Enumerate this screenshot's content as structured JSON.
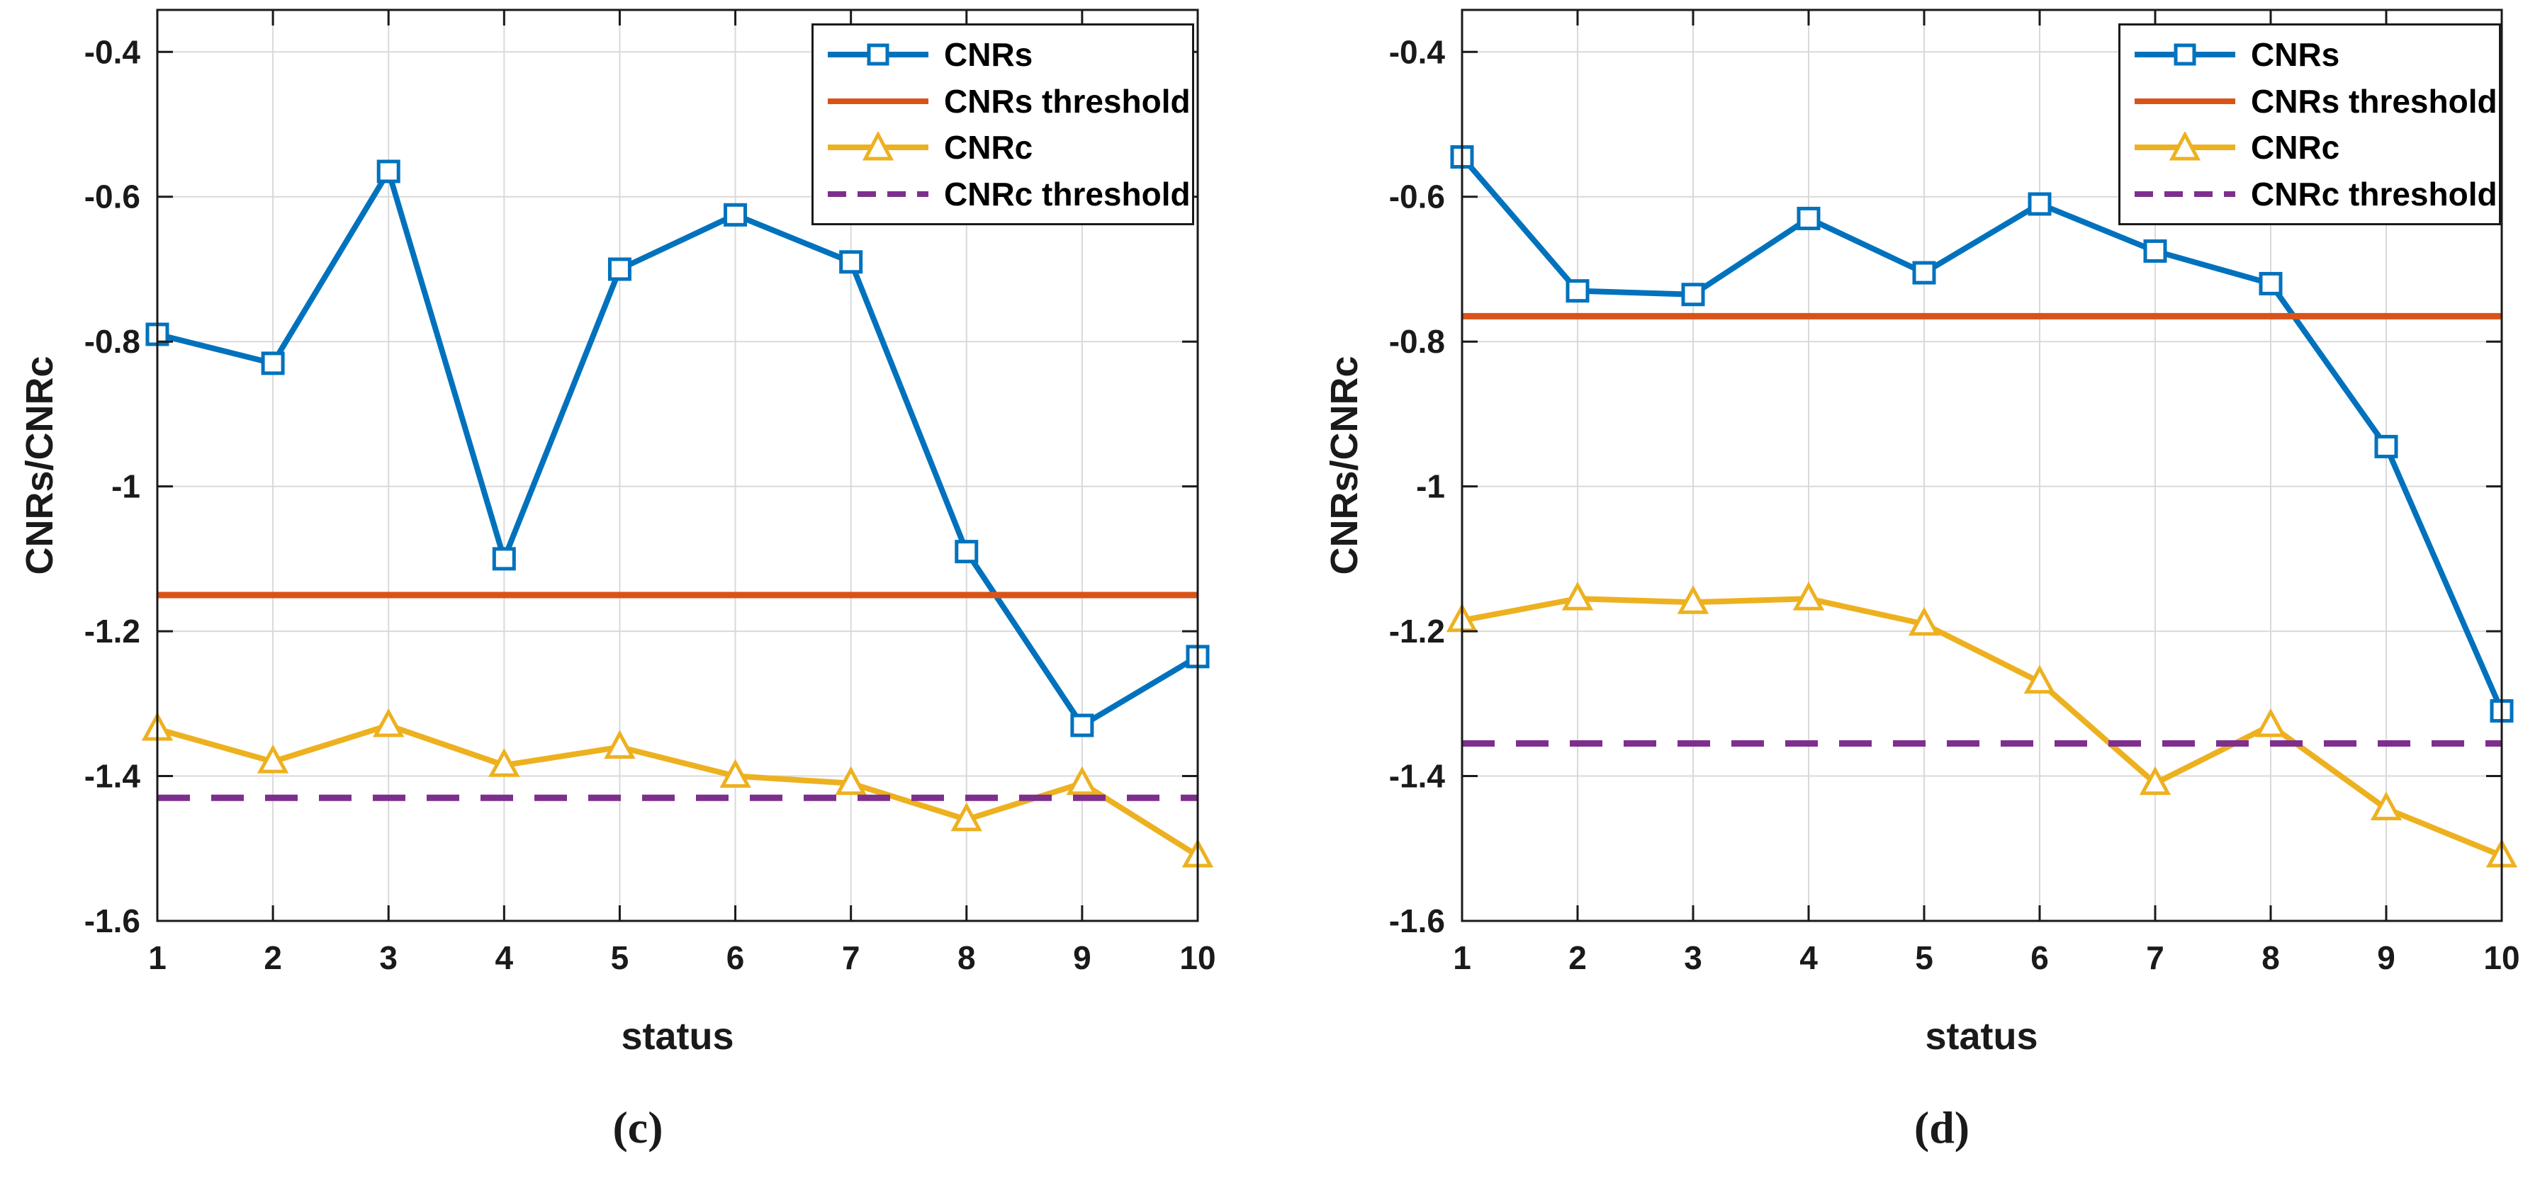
{
  "figure": {
    "background": "#ffffff",
    "caption_left": "(c)",
    "caption_right": "(d)"
  },
  "colors": {
    "cnrs": "#0072BD",
    "cnrs_threshold": "#D95319",
    "cnrc": "#EDB120",
    "cnrc_threshold": "#7E2F8E",
    "grid": "#d9d9d9",
    "axis": "#1a1a1a",
    "tick_text": "#1a1a1a"
  },
  "legend": {
    "items": [
      {
        "label": "CNRs",
        "swatch": "line-square",
        "color": "#0072BD"
      },
      {
        "label": "CNRs threshold",
        "swatch": "line",
        "color": "#D95319"
      },
      {
        "label": "CNRc",
        "swatch": "line-triangle",
        "color": "#EDB120"
      },
      {
        "label": "CNRc threshold",
        "swatch": "dashed-line",
        "color": "#7E2F8E"
      }
    ]
  },
  "chart_data": [
    {
      "id": "c",
      "type": "line",
      "caption": "(c)",
      "xlabel": "status",
      "ylabel": "CNRs/CNRc",
      "x": [
        1,
        2,
        3,
        4,
        5,
        6,
        7,
        8,
        9,
        10
      ],
      "xlim": [
        1,
        10
      ],
      "ylim": [
        -1.6,
        -0.342
      ],
      "xticks": [
        1,
        2,
        3,
        4,
        5,
        6,
        7,
        8,
        9,
        10
      ],
      "xtick_labels": [
        "1",
        "2",
        "3",
        "4",
        "5",
        "6",
        "7",
        "8",
        "9",
        "10"
      ],
      "yticks": [
        -0.4,
        -0.6,
        -0.8,
        -1,
        -1.2,
        -1.4,
        -1.6
      ],
      "ytick_labels": [
        "-0.4",
        "-0.6",
        "-0.8",
        "-1",
        "-1.2",
        "-1.4",
        "-1.6"
      ],
      "grid": true,
      "legend_position": "top-right",
      "series": [
        {
          "name": "CNRs",
          "kind": "line",
          "marker": "square",
          "color": "#0072BD",
          "values": [
            -0.79,
            -0.83,
            -0.565,
            -1.1,
            -0.7,
            -0.625,
            -0.69,
            -1.09,
            -1.33,
            -1.235
          ]
        },
        {
          "name": "CNRs threshold",
          "kind": "hline",
          "color": "#D95319",
          "line_style": "solid",
          "value": -1.15
        },
        {
          "name": "CNRc",
          "kind": "line",
          "marker": "triangle",
          "color": "#EDB120",
          "values": [
            -1.335,
            -1.38,
            -1.33,
            -1.385,
            -1.36,
            -1.4,
            -1.41,
            -1.46,
            -1.41,
            -1.51
          ]
        },
        {
          "name": "CNRc threshold",
          "kind": "hline",
          "color": "#7E2F8E",
          "line_style": "dashed",
          "value": -1.43
        }
      ]
    },
    {
      "id": "d",
      "type": "line",
      "caption": "(d)",
      "xlabel": "status",
      "ylabel": "CNRs/CNRc",
      "x": [
        1,
        2,
        3,
        4,
        5,
        6,
        7,
        8,
        9,
        10
      ],
      "xlim": [
        1,
        10
      ],
      "ylim": [
        -1.6,
        -0.342
      ],
      "xticks": [
        1,
        2,
        3,
        4,
        5,
        6,
        7,
        8,
        9,
        10
      ],
      "xtick_labels": [
        "1",
        "2",
        "3",
        "4",
        "5",
        "6",
        "7",
        "8",
        "9",
        "10"
      ],
      "yticks": [
        -0.4,
        -0.6,
        -0.8,
        -1,
        -1.2,
        -1.4,
        -1.6
      ],
      "ytick_labels": [
        "-0.4",
        "-0.6",
        "-0.8",
        "-1",
        "-1.2",
        "-1.4",
        "-1.6"
      ],
      "grid": true,
      "legend_position": "top-right",
      "series": [
        {
          "name": "CNRs",
          "kind": "line",
          "marker": "square",
          "color": "#0072BD",
          "values": [
            -0.545,
            -0.73,
            -0.735,
            -0.63,
            -0.705,
            -0.61,
            -0.675,
            -0.72,
            -0.945,
            -1.31
          ]
        },
        {
          "name": "CNRs threshold",
          "kind": "hline",
          "color": "#D95319",
          "line_style": "solid",
          "value": -0.765
        },
        {
          "name": "CNRc",
          "kind": "line",
          "marker": "triangle",
          "color": "#EDB120",
          "values": [
            -1.185,
            -1.155,
            -1.16,
            -1.155,
            -1.19,
            -1.27,
            -1.41,
            -1.33,
            -1.445,
            -1.51
          ]
        },
        {
          "name": "CNRc threshold",
          "kind": "hline",
          "color": "#7E2F8E",
          "line_style": "dashed",
          "value": -1.355
        }
      ]
    }
  ]
}
